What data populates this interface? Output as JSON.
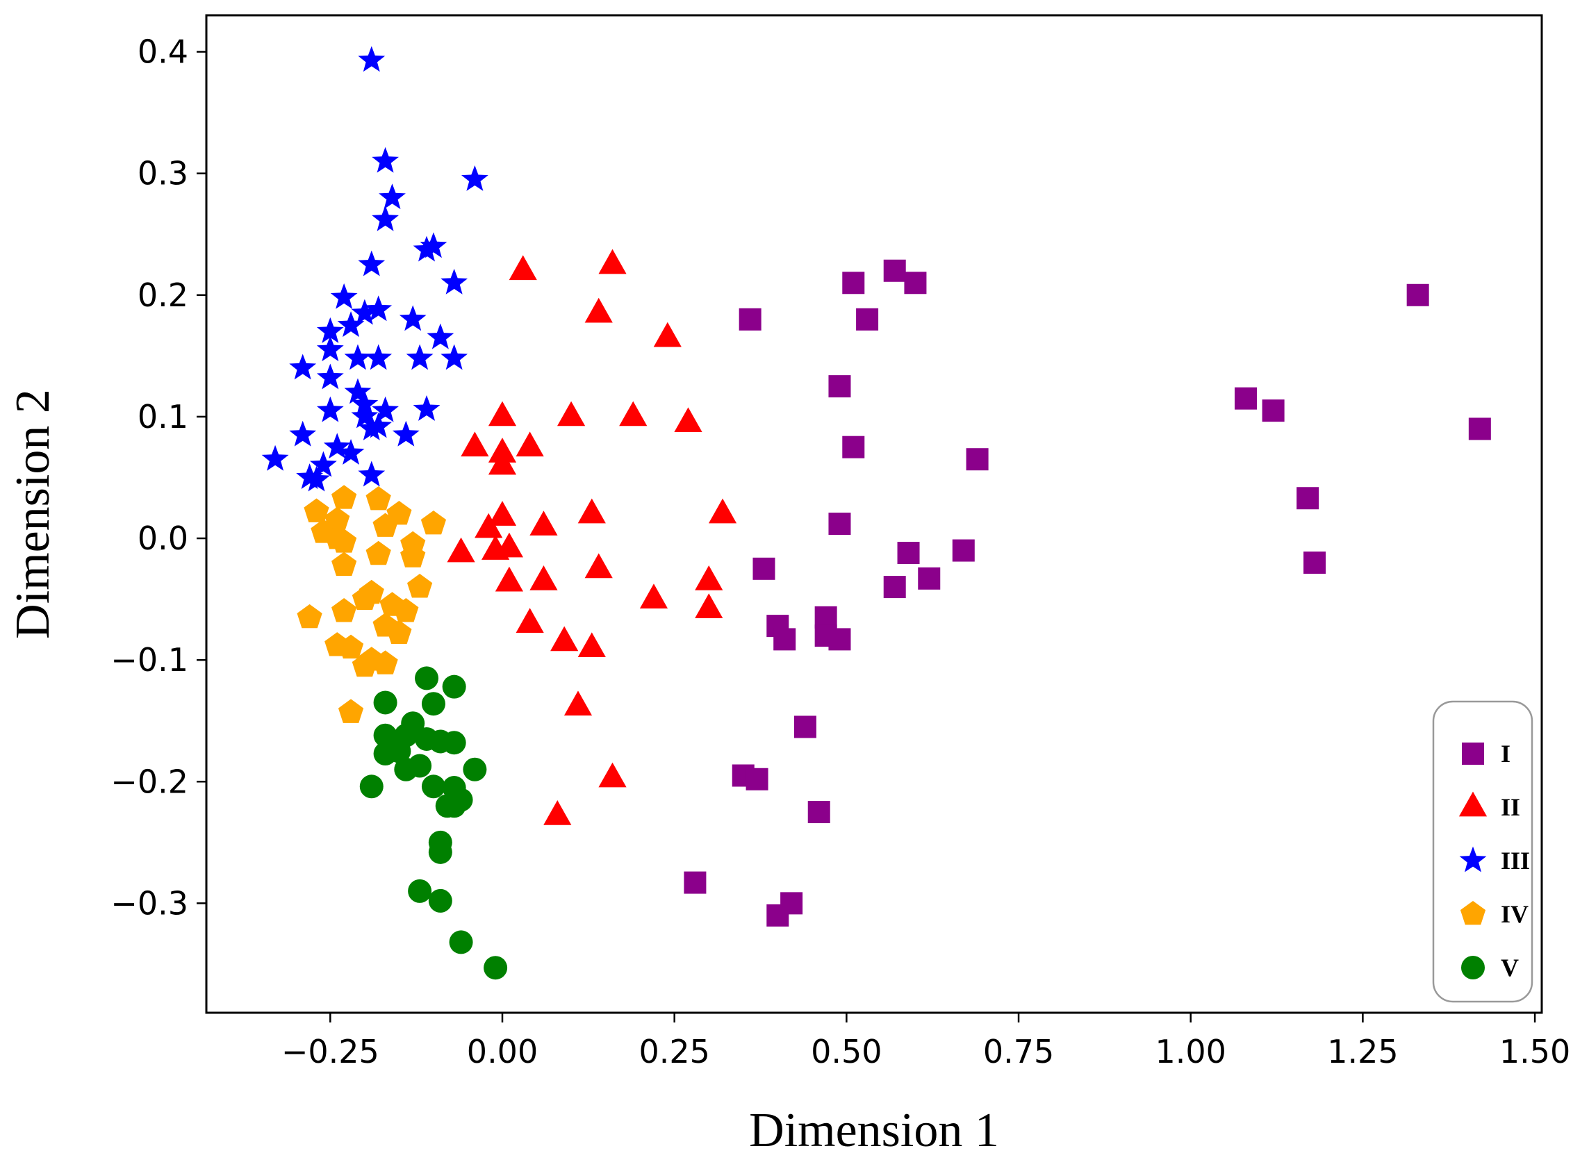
{
  "chart_data": {
    "type": "scatter",
    "title": "",
    "xlabel": "Dimension 1",
    "ylabel": "Dimension 2",
    "xlim": [
      -0.43,
      1.51
    ],
    "ylim": [
      -0.39,
      0.43
    ],
    "xticks": [
      -0.25,
      0.0,
      0.25,
      0.5,
      0.75,
      1.0,
      1.25,
      1.5
    ],
    "xtick_labels": [
      "−0.25",
      "0.00",
      "0.25",
      "0.50",
      "0.75",
      "1.00",
      "1.25",
      "1.50"
    ],
    "yticks": [
      -0.3,
      -0.2,
      -0.1,
      0.0,
      0.1,
      0.2,
      0.3,
      0.4
    ],
    "ytick_labels": [
      "−0.3",
      "−0.2",
      "−0.1",
      "0.0",
      "0.1",
      "0.2",
      "0.3",
      "0.4"
    ],
    "grid": false,
    "legend_position": "bottom-right",
    "series": [
      {
        "name": "I",
        "marker": "square",
        "color": "#8B008B",
        "x": [
          0.51,
          0.57,
          0.6,
          0.53,
          0.36,
          1.33,
          1.08,
          1.12,
          1.42,
          0.49,
          0.51,
          0.69,
          1.17,
          0.49,
          1.18,
          0.38,
          0.59,
          0.67,
          0.62,
          0.57,
          0.4,
          0.41,
          0.47,
          0.47,
          0.49,
          0.44,
          0.35,
          0.37,
          0.46,
          0.28,
          0.42,
          0.4
        ],
        "y": [
          0.21,
          0.22,
          0.21,
          0.18,
          0.18,
          0.2,
          0.115,
          0.105,
          0.09,
          0.125,
          0.075,
          0.065,
          0.033,
          0.012,
          -0.02,
          -0.025,
          -0.012,
          -0.01,
          -0.033,
          -0.04,
          -0.072,
          -0.083,
          -0.065,
          -0.08,
          -0.083,
          -0.155,
          -0.195,
          -0.198,
          -0.225,
          -0.283,
          -0.3,
          -0.31
        ]
      },
      {
        "name": "II",
        "marker": "triangle",
        "color": "#FF0000",
        "x": [
          0.03,
          0.16,
          0.14,
          0.24,
          0.0,
          0.1,
          0.19,
          0.27,
          -0.04,
          0.04,
          0.0,
          0.0,
          0.13,
          0.32,
          -0.02,
          0.0,
          0.06,
          -0.06,
          -0.01,
          0.01,
          0.14,
          0.01,
          0.06,
          0.22,
          0.3,
          0.3,
          0.04,
          0.09,
          0.13,
          0.11,
          0.16,
          0.08
        ],
        "y": [
          0.22,
          0.225,
          0.185,
          0.165,
          0.1,
          0.1,
          0.1,
          0.095,
          0.075,
          0.075,
          0.07,
          0.06,
          0.02,
          0.02,
          0.008,
          0.018,
          0.01,
          -0.012,
          -0.01,
          -0.008,
          -0.025,
          -0.036,
          -0.035,
          -0.05,
          -0.035,
          -0.058,
          -0.07,
          -0.085,
          -0.09,
          -0.138,
          -0.197,
          -0.228
        ]
      },
      {
        "name": "III",
        "marker": "star",
        "color": "#0000FF",
        "x": [
          -0.19,
          -0.17,
          -0.04,
          -0.16,
          -0.17,
          -0.1,
          -0.11,
          -0.19,
          -0.07,
          -0.23,
          -0.18,
          -0.2,
          -0.25,
          -0.22,
          -0.13,
          -0.25,
          -0.09,
          -0.29,
          -0.21,
          -0.18,
          -0.12,
          -0.07,
          -0.25,
          -0.21,
          -0.2,
          -0.25,
          -0.11,
          -0.17,
          -0.2,
          -0.19,
          -0.18,
          -0.14,
          -0.29,
          -0.24,
          -0.22,
          -0.33,
          -0.26,
          -0.19,
          -0.28,
          -0.27
        ],
        "y": [
          0.393,
          0.31,
          0.295,
          0.28,
          0.262,
          0.24,
          0.237,
          0.225,
          0.21,
          0.198,
          0.188,
          0.185,
          0.17,
          0.175,
          0.18,
          0.155,
          0.165,
          0.14,
          0.148,
          0.148,
          0.148,
          0.148,
          0.132,
          0.12,
          0.11,
          0.105,
          0.106,
          0.105,
          0.1,
          0.09,
          0.092,
          0.085,
          0.085,
          0.075,
          0.07,
          0.065,
          0.06,
          0.052,
          0.05,
          0.048
        ]
      },
      {
        "name": "IV",
        "marker": "pentagon",
        "color": "#FFA500",
        "x": [
          -0.23,
          -0.18,
          -0.27,
          -0.1,
          -0.24,
          -0.17,
          -0.15,
          -0.26,
          -0.24,
          -0.23,
          -0.13,
          -0.18,
          -0.23,
          -0.13,
          -0.12,
          -0.28,
          -0.2,
          -0.16,
          -0.19,
          -0.23,
          -0.14,
          -0.17,
          -0.15,
          -0.24,
          -0.22,
          -0.19,
          -0.17,
          -0.2,
          -0.22
        ],
        "y": [
          0.033,
          0.032,
          0.022,
          0.012,
          0.015,
          0.01,
          0.02,
          0.005,
          0.0,
          -0.003,
          -0.005,
          -0.013,
          -0.022,
          -0.015,
          -0.04,
          -0.065,
          -0.05,
          -0.055,
          -0.045,
          -0.06,
          -0.06,
          -0.072,
          -0.078,
          -0.088,
          -0.09,
          -0.1,
          -0.103,
          -0.105,
          -0.143
        ]
      },
      {
        "name": "V",
        "marker": "circle",
        "color": "#008000",
        "x": [
          -0.11,
          -0.07,
          -0.17,
          -0.1,
          -0.13,
          -0.17,
          -0.14,
          -0.11,
          -0.09,
          -0.07,
          -0.17,
          -0.04,
          -0.14,
          -0.12,
          -0.19,
          -0.1,
          -0.07,
          -0.07,
          -0.06,
          -0.08,
          -0.09,
          -0.09,
          -0.12,
          -0.09,
          -0.06,
          -0.01,
          -0.15
        ],
        "y": [
          -0.115,
          -0.122,
          -0.135,
          -0.136,
          -0.152,
          -0.162,
          -0.162,
          -0.165,
          -0.167,
          -0.168,
          -0.177,
          -0.19,
          -0.19,
          -0.187,
          -0.204,
          -0.204,
          -0.205,
          -0.22,
          -0.215,
          -0.22,
          -0.25,
          -0.258,
          -0.29,
          -0.298,
          -0.332,
          -0.353,
          -0.175
        ]
      }
    ]
  }
}
